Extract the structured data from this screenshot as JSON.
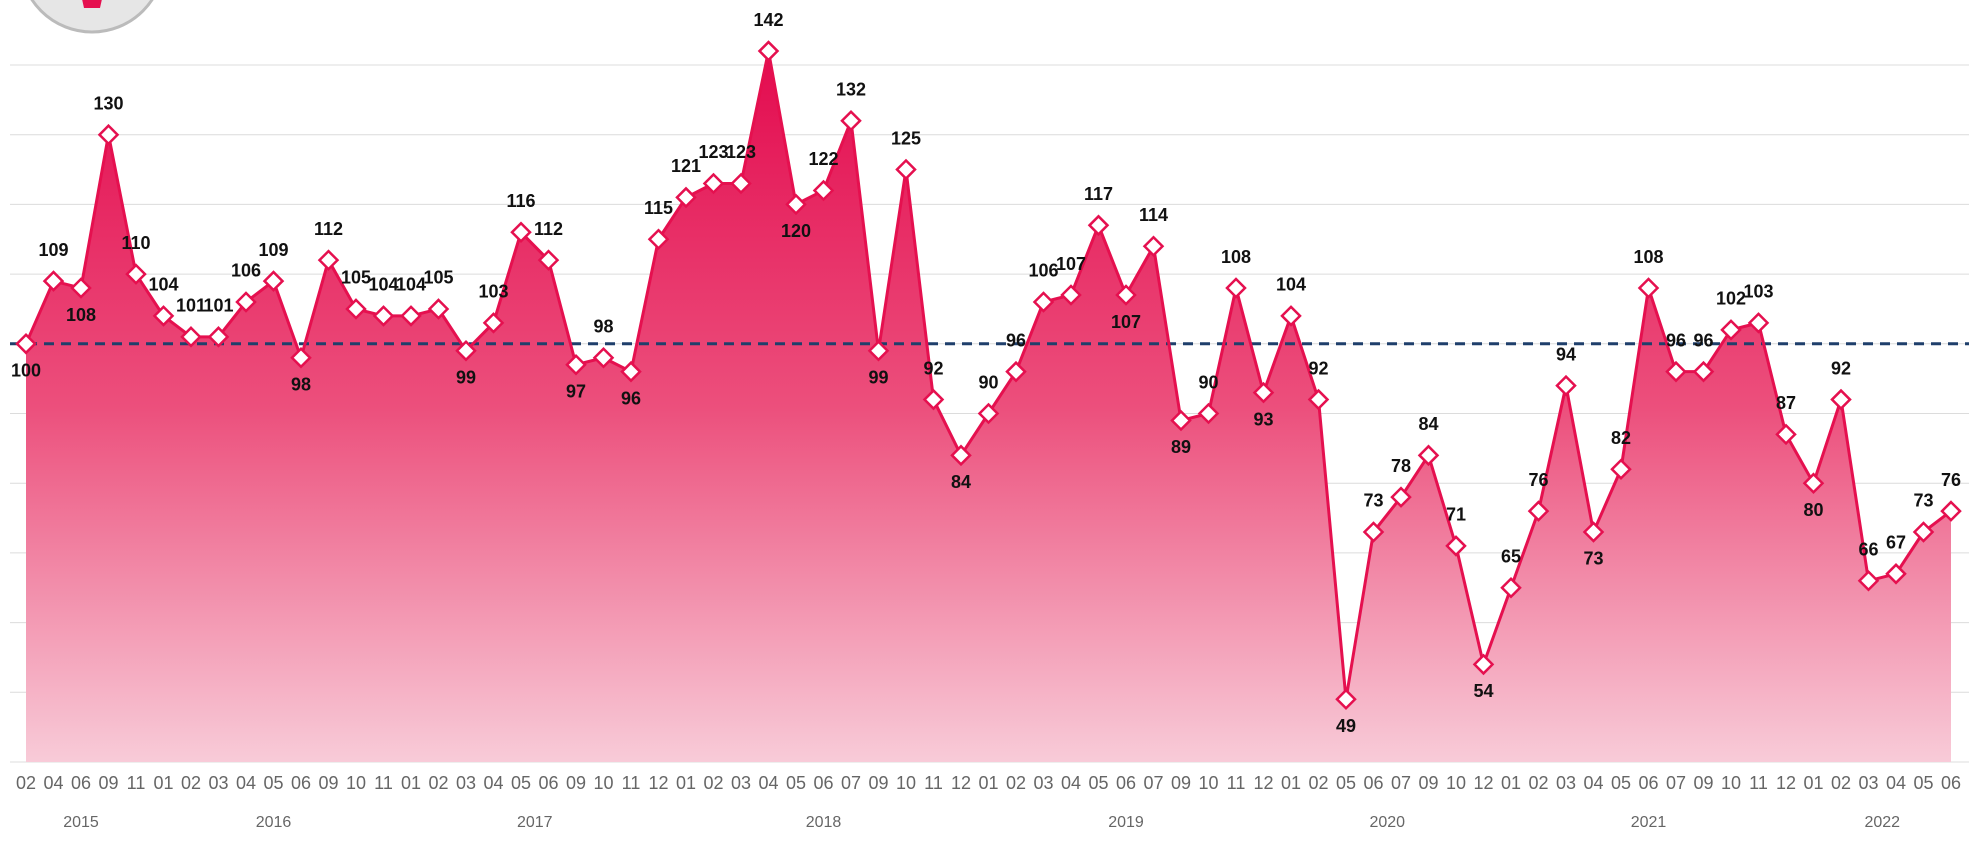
{
  "chart_data": {
    "type": "area",
    "categories": [
      "02",
      "04",
      "06",
      "09",
      "11",
      "01",
      "02",
      "03",
      "04",
      "05",
      "06",
      "09",
      "10",
      "11",
      "01",
      "02",
      "03",
      "04",
      "05",
      "06",
      "09",
      "10",
      "11",
      "12",
      "01",
      "02",
      "03",
      "04",
      "05",
      "06",
      "07",
      "09",
      "10",
      "11",
      "12",
      "01",
      "02",
      "03",
      "04",
      "05",
      "06",
      "07",
      "09",
      "10",
      "11",
      "12",
      "01",
      "02",
      "05",
      "06",
      "07",
      "09",
      "10",
      "12",
      "01",
      "02",
      "03",
      "04",
      "05",
      "06",
      "07",
      "09",
      "10",
      "11",
      "12",
      "01",
      "02",
      "03",
      "04",
      "05",
      "06"
    ],
    "year_labels": [
      "2015",
      "2016",
      "2017",
      "2018",
      "2019",
      "2020",
      "2021",
      "2022"
    ],
    "values": [
      100,
      109,
      108,
      130,
      110,
      104,
      101,
      101,
      106,
      109,
      98,
      112,
      105,
      104,
      104,
      105,
      99,
      103,
      116,
      112,
      97,
      98,
      96,
      115,
      121,
      123,
      123,
      142,
      120,
      122,
      132,
      99,
      125,
      92,
      84,
      90,
      96,
      106,
      107,
      117,
      107,
      114,
      89,
      90,
      108,
      93,
      104,
      92,
      49,
      73,
      78,
      84,
      71,
      54,
      65,
      76,
      94,
      73,
      82,
      108,
      96,
      96,
      102,
      103,
      87,
      80,
      92,
      66,
      67,
      73,
      76
    ],
    "color": "#e5104f",
    "ylim": [
      40,
      150
    ],
    "yticks": [
      40,
      50,
      60,
      70,
      80,
      90,
      100,
      110,
      120,
      130,
      140
    ],
    "grid": true,
    "show_ytick_labels": false,
    "reference_line": 100,
    "reference_color": "#1f3f6b"
  }
}
